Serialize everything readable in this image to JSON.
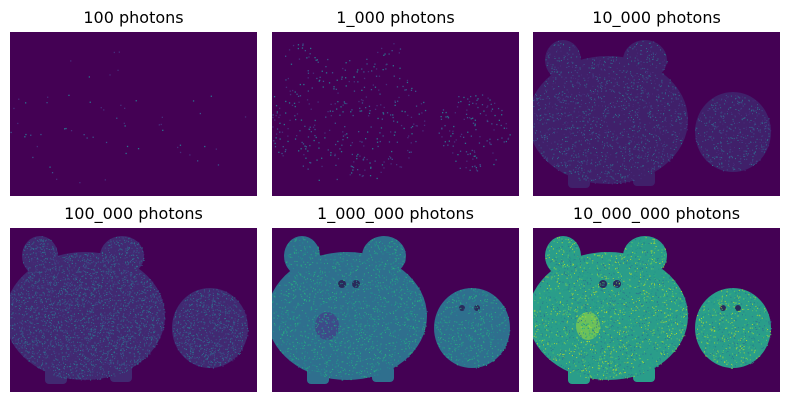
{
  "figure": {
    "background": "#ffffff",
    "colormap_dark": "#440154",
    "panels": [
      {
        "title": "100 photons",
        "photons": 100
      },
      {
        "title": "1_000 photons",
        "photons": 1000
      },
      {
        "title": "10_000 photons",
        "photons": 10000
      },
      {
        "title": "100_000 photons",
        "photons": 100000
      },
      {
        "title": "1_000_000 photons",
        "photons": 1000000
      },
      {
        "title": "10_000_000 photons",
        "photons": 10000000
      }
    ]
  }
}
